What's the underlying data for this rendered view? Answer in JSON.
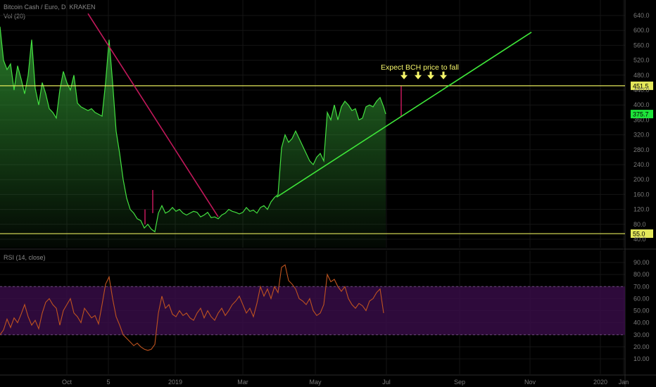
{
  "header": {
    "symbol_line": "Bitcoin Cash / Euro, D, KRAKEN",
    "volume_label": "Vol (20)",
    "rsi_label": "RSI (14, close)"
  },
  "colors": {
    "background": "#000000",
    "price_line": "#43e040",
    "price_fill_top": "#2f8f30",
    "downtrend_line": "#c2185b",
    "uptrend_line": "#3fe73a",
    "horizontal_levels": "#e4e85a",
    "rsi_line": "#c0541f",
    "rsi_band": "#3a0d4a",
    "arrow": "#f5f56a"
  },
  "chart_data": [
    {
      "type": "area",
      "panel": "price",
      "title": "Bitcoin Cash / Euro, D, KRAKEN",
      "y_ticks": [
        40,
        80,
        120,
        160,
        200,
        240,
        280,
        320,
        360,
        400,
        440,
        480,
        520,
        560,
        600,
        640
      ],
      "ylim": [
        30,
        645
      ],
      "x_ticks": [
        "Oct",
        "5",
        "2019",
        "Mar",
        "May",
        "Jul",
        "Sep",
        "Nov",
        "2020",
        "Jan"
      ],
      "x_tick_index": [
        95,
        154,
        249,
        345,
        448,
        549,
        653,
        753,
        853,
        886
      ],
      "x_range": [
        0,
        932
      ],
      "series": [
        {
          "x": [
            0,
            5,
            10,
            15,
            20,
            25,
            30,
            35,
            40,
            45,
            50,
            55,
            60,
            65,
            70,
            75,
            80,
            85,
            90,
            95,
            100,
            105,
            110,
            115,
            120,
            125,
            130,
            135,
            140,
            145,
            150,
            155,
            160,
            165,
            170,
            175,
            180,
            185,
            190,
            195,
            200,
            205,
            210,
            215,
            220,
            225,
            230,
            235,
            240,
            245,
            250,
            255,
            260,
            265,
            270,
            275,
            280,
            285,
            290,
            295,
            300,
            305,
            310,
            315,
            320,
            325,
            330,
            335,
            340,
            345,
            350,
            355,
            360,
            365,
            370,
            375,
            380,
            385,
            390,
            395,
            400,
            405,
            410,
            415,
            420,
            425,
            430,
            435,
            440,
            445,
            450,
            455,
            460,
            465,
            470,
            475,
            480,
            485,
            490,
            495,
            500,
            505,
            510,
            515,
            520,
            525,
            530,
            535,
            540,
            545,
            548
          ],
          "y": [
            610,
            520,
            495,
            510,
            440,
            505,
            470,
            430,
            480,
            575,
            445,
            400,
            460,
            430,
            390,
            380,
            365,
            440,
            490,
            460,
            440,
            480,
            405,
            395,
            390,
            385,
            390,
            380,
            375,
            370,
            460,
            575,
            460,
            330,
            270,
            200,
            150,
            120,
            110,
            95,
            90,
            70,
            80,
            67,
            60,
            110,
            130,
            110,
            115,
            125,
            115,
            120,
            110,
            105,
            110,
            115,
            112,
            100,
            105,
            112,
            98,
            100,
            95,
            105,
            110,
            120,
            115,
            112,
            108,
            112,
            125,
            115,
            118,
            110,
            125,
            130,
            120,
            140,
            152,
            160,
            285,
            320,
            300,
            310,
            330,
            310,
            290,
            270,
            250,
            240,
            260,
            270,
            250,
            380,
            360,
            400,
            360,
            395,
            410,
            400,
            385,
            390,
            360,
            365,
            395,
            400,
            395,
            410,
            420,
            395,
            375.7
          ]
        }
      ],
      "hlines": [
        {
          "value": 451.5,
          "label": "451.5"
        },
        {
          "value": 55.0,
          "label": "55.0"
        }
      ],
      "last_price": "375.7",
      "trendlines": [
        {
          "name": "downtrend",
          "from": [
            125,
            645
          ],
          "to": [
            310,
            100
          ]
        },
        {
          "name": "uptrend",
          "from": [
            393,
            153
          ],
          "to": [
            755,
            595
          ]
        }
      ],
      "annotation": "Expect BCH price to fall",
      "arrow_x": [
        574,
        594,
        612,
        630
      ],
      "arrow_y_value": 482
    },
    {
      "type": "line",
      "panel": "rsi",
      "title": "RSI (14, close)",
      "y_ticks": [
        10,
        20,
        30,
        40,
        50,
        60,
        70,
        80,
        90
      ],
      "ylim": [
        2,
        96
      ],
      "band": [
        30,
        70
      ],
      "x": [
        0,
        5,
        10,
        15,
        20,
        25,
        30,
        35,
        40,
        45,
        50,
        55,
        60,
        65,
        70,
        75,
        80,
        85,
        90,
        95,
        100,
        105,
        110,
        115,
        120,
        125,
        130,
        135,
        140,
        145,
        150,
        155,
        160,
        165,
        170,
        175,
        180,
        185,
        190,
        195,
        200,
        205,
        210,
        215,
        220,
        225,
        230,
        235,
        240,
        245,
        250,
        255,
        260,
        265,
        270,
        275,
        280,
        285,
        290,
        295,
        300,
        305,
        310,
        315,
        320,
        325,
        330,
        335,
        340,
        345,
        350,
        355,
        360,
        365,
        370,
        375,
        380,
        385,
        390,
        395,
        400,
        405,
        410,
        415,
        420,
        425,
        430,
        435,
        440,
        445,
        450,
        455,
        460,
        465,
        470,
        475,
        480,
        485,
        490,
        495,
        500,
        505,
        510,
        515,
        520,
        525,
        530,
        535,
        540,
        545
      ],
      "y": [
        30,
        34,
        43,
        36,
        44,
        40,
        47,
        55,
        45,
        38,
        42,
        35,
        48,
        57,
        60,
        55,
        52,
        38,
        50,
        55,
        60,
        48,
        45,
        40,
        52,
        48,
        44,
        46,
        39,
        55,
        72,
        78,
        60,
        45,
        38,
        30,
        27,
        24,
        21,
        23,
        20,
        18,
        17,
        18,
        22,
        48,
        62,
        52,
        55,
        47,
        45,
        50,
        46,
        48,
        44,
        42,
        48,
        52,
        44,
        50,
        45,
        42,
        48,
        52,
        46,
        50,
        55,
        58,
        62,
        55,
        48,
        52,
        45,
        56,
        70,
        62,
        68,
        60,
        70,
        65,
        86,
        88,
        75,
        72,
        68,
        60,
        58,
        55,
        60,
        50,
        46,
        48,
        55,
        80,
        74,
        76,
        70,
        66,
        70,
        60,
        55,
        52,
        56,
        54,
        50,
        58,
        60,
        65,
        68,
        48
      ]
    }
  ]
}
